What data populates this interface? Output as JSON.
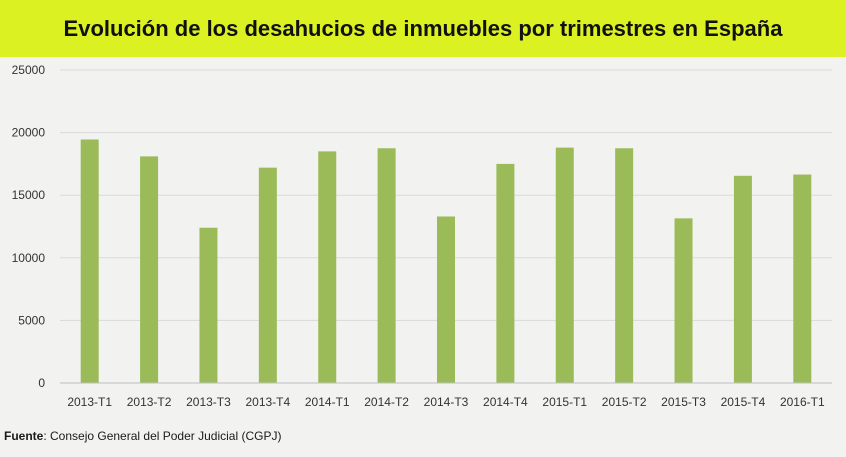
{
  "chart_data": {
    "type": "bar",
    "title": "Evolución de los desahucios de inmuebles por trimestres en España",
    "categories": [
      "2013-T1",
      "2013-T2",
      "2013-T3",
      "2013-T4",
      "2014-T1",
      "2014-T2",
      "2014-T3",
      "2014-T4",
      "2015-T1",
      "2015-T2",
      "2015-T3",
      "2015-T4",
      "2016-T1"
    ],
    "values": [
      19450,
      18100,
      12400,
      17200,
      18500,
      18750,
      13300,
      17500,
      18800,
      18750,
      13150,
      16550,
      16650
    ],
    "xlabel": "",
    "ylabel": "",
    "ylim": [
      0,
      25000
    ],
    "yticks": [
      "0",
      "5000",
      "10000",
      "15000",
      "20000",
      "25000"
    ],
    "grid": true,
    "bar_color": "#9bbb59"
  },
  "source": {
    "label": "Fuente",
    "text": ": Consejo General del Poder Judicial (CGPJ)"
  }
}
